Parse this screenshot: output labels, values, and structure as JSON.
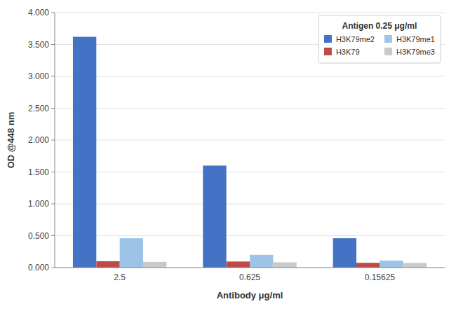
{
  "chart_data": {
    "type": "bar",
    "categories": [
      "2.5",
      "0.625",
      "0.15625"
    ],
    "series": [
      {
        "name": "H3K79me2",
        "color": "#4472C4",
        "values": [
          3.62,
          1.6,
          0.46
        ]
      },
      {
        "name": "H3K79",
        "color": "#BE4B48",
        "values": [
          0.1,
          0.095,
          0.075
        ]
      },
      {
        "name": "H3K79me1",
        "color": "#9DC3E6",
        "values": [
          0.46,
          0.2,
          0.11
        ]
      },
      {
        "name": "H3K79me3",
        "color": "#C9C9C9",
        "values": [
          0.09,
          0.082,
          0.072
        ]
      }
    ],
    "xlabel": "Antibody μg/ml",
    "ylabel": "OD  @448 nm",
    "legend_title": "Antigen 0.25 μg/ml",
    "ylim": [
      0.0,
      4.0
    ],
    "yticks": [
      {
        "value": 0.0,
        "label": "0.000"
      },
      {
        "value": 0.5,
        "label": "0.500"
      },
      {
        "value": 1.0,
        "label": "1.000"
      },
      {
        "value": 1.5,
        "label": "1.500"
      },
      {
        "value": 2.0,
        "label": "2.000"
      },
      {
        "value": 2.5,
        "label": "2.500"
      },
      {
        "value": 3.0,
        "label": "3.000"
      },
      {
        "value": 3.5,
        "label": "3.500"
      },
      {
        "value": 4.0,
        "label": "4.000"
      }
    ],
    "grid": true,
    "legend": "upper right"
  }
}
